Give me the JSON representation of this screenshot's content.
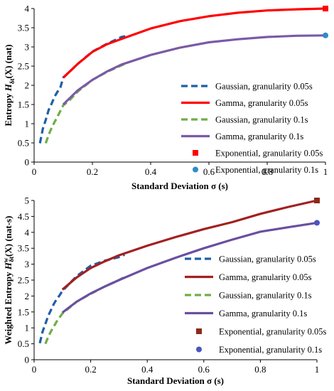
{
  "chart_data": [
    {
      "type": "line",
      "xlabel": "Standard Deviation σ  (s)",
      "ylabel": "Entropy H_δt(X) (nat)",
      "ylabel_parts": {
        "pre": "Entropy ",
        "H": "H",
        "sub": "δt",
        "post": "(X) (nat)"
      },
      "xlim": [
        0,
        1
      ],
      "ylim": [
        0,
        4
      ],
      "xticks": [
        0,
        0.2,
        0.4,
        0.6,
        0.8,
        1
      ],
      "xtick_labels": [
        "0",
        "0.2",
        "0.4",
        "0.6",
        "0.8",
        "1"
      ],
      "yticks": [
        0,
        0.5,
        1,
        1.5,
        2,
        2.5,
        3,
        3.5,
        4
      ],
      "ytick_labels": [
        "0",
        "0.5",
        "1",
        "1.5",
        "2",
        "2.5",
        "3",
        "3.5",
        "4"
      ],
      "grid": false,
      "legend_position": "right",
      "series": [
        {
          "name": "Gaussian, granularity 0.05s",
          "style": "dashed",
          "color": "#1f5fa8",
          "x": [
            0.02,
            0.03,
            0.04,
            0.05,
            0.06,
            0.07,
            0.08,
            0.09,
            0.1,
            0.12,
            0.15,
            0.2,
            0.25,
            0.3,
            0.32
          ],
          "y": [
            0.49,
            0.87,
            1.1,
            1.36,
            1.52,
            1.7,
            1.83,
            1.94,
            2.2,
            2.34,
            2.56,
            2.88,
            3.08,
            3.26,
            3.29
          ]
        },
        {
          "name": "Gamma, granularity 0.05s",
          "style": "solid",
          "color": "#ff0000",
          "x": [
            0.1,
            0.15,
            0.2,
            0.25,
            0.3,
            0.4,
            0.5,
            0.6,
            0.7,
            0.8,
            0.9,
            1
          ],
          "y": [
            2.2,
            2.56,
            2.87,
            3.07,
            3.21,
            3.48,
            3.67,
            3.8,
            3.89,
            3.95,
            3.98,
            4.0
          ]
        },
        {
          "name": "Gaussian, granularity 0.1s",
          "style": "dashed",
          "color": "#70ad47",
          "x": [
            0.04,
            0.05,
            0.06,
            0.07,
            0.08,
            0.1,
            0.12,
            0.15,
            0.2,
            0.25,
            0.3,
            0.32
          ],
          "y": [
            0.49,
            0.71,
            0.89,
            1.04,
            1.18,
            1.48,
            1.6,
            1.84,
            2.14,
            2.35,
            2.52,
            2.58
          ]
        },
        {
          "name": "Gamma, granularity 0.1s",
          "style": "solid",
          "color": "#7a5aa6",
          "x": [
            0.1,
            0.15,
            0.2,
            0.25,
            0.3,
            0.4,
            0.5,
            0.6,
            0.7,
            0.8,
            0.9,
            1
          ],
          "y": [
            1.5,
            1.87,
            2.14,
            2.36,
            2.54,
            2.79,
            2.98,
            3.12,
            3.2,
            3.26,
            3.29,
            3.3
          ]
        },
        {
          "name": "Exponential, granularity 0.05s",
          "style": "square",
          "color": "#ff0000",
          "x": [
            1
          ],
          "y": [
            4.0
          ]
        },
        {
          "name": "Exponential, granularity 0.1s",
          "style": "circle",
          "color": "#2e8bc9",
          "x": [
            1
          ],
          "y": [
            3.3
          ]
        }
      ]
    },
    {
      "type": "line",
      "xlabel": "Standard Deviation σ  (s)",
      "ylabel": "Weighted Entropy H^w_δt(X) (nat-s)",
      "ylabel_parts": {
        "pre": "Weighted Entropy ",
        "H": "H",
        "sup": "w",
        "sub": "δt",
        "post": "(X) (nat-s)"
      },
      "xlim": [
        0,
        1
      ],
      "ylim": [
        0,
        5
      ],
      "xticks": [
        0,
        0.2,
        0.4,
        0.6,
        0.8,
        1
      ],
      "xtick_labels": [
        "0",
        "0.2",
        "0.4",
        "0.6",
        "0.8",
        "1"
      ],
      "yticks": [
        0,
        0.5,
        1,
        1.5,
        2,
        2.5,
        3,
        3.5,
        4,
        4.5,
        5
      ],
      "ytick_labels": [
        "0",
        "0.5",
        "1",
        "1.5",
        "2",
        "2.5",
        "3",
        "3.5",
        "4",
        "4.5",
        "5"
      ],
      "grid": false,
      "legend_position": "right",
      "series": [
        {
          "name": "Gaussian, granularity 0.05s",
          "style": "dashed",
          "color": "#1f5fa8",
          "x": [
            0.02,
            0.03,
            0.04,
            0.05,
            0.06,
            0.07,
            0.08,
            0.09,
            0.1,
            0.15,
            0.2,
            0.25,
            0.3,
            0.32
          ],
          "y": [
            0.52,
            0.88,
            1.13,
            1.38,
            1.57,
            1.76,
            1.9,
            2.02,
            2.16,
            2.62,
            2.95,
            3.11,
            3.22,
            3.3
          ]
        },
        {
          "name": "Gamma, granularity 0.05s",
          "style": "solid",
          "color": "#a32020",
          "x": [
            0.1,
            0.15,
            0.2,
            0.25,
            0.3,
            0.4,
            0.5,
            0.6,
            0.7,
            0.8,
            0.9,
            1
          ],
          "y": [
            2.2,
            2.58,
            2.88,
            3.09,
            3.28,
            3.58,
            3.85,
            4.1,
            4.32,
            4.58,
            4.8,
            5.0
          ]
        },
        {
          "name": "Gaussian, granularity 0.1s",
          "style": "dashed",
          "color": "#70ad47",
          "x": [
            0.04,
            0.05,
            0.06,
            0.07,
            0.08,
            0.1,
            0.15,
            0.2,
            0.25,
            0.3,
            0.32
          ],
          "y": [
            0.5,
            0.72,
            0.9,
            1.05,
            1.2,
            1.45,
            1.82,
            2.07,
            2.3,
            2.5,
            2.6
          ]
        },
        {
          "name": "Gamma, granularity 0.1s",
          "style": "solid",
          "color": "#6a4fa0",
          "x": [
            0.1,
            0.15,
            0.2,
            0.25,
            0.3,
            0.4,
            0.5,
            0.6,
            0.7,
            0.8,
            0.9,
            1
          ],
          "y": [
            1.48,
            1.82,
            2.08,
            2.3,
            2.5,
            2.88,
            3.2,
            3.5,
            3.77,
            4.02,
            4.16,
            4.3
          ]
        },
        {
          "name": "Exponential, granularity 0.05s",
          "style": "square",
          "color": "#8b2a1a",
          "x": [
            1
          ],
          "y": [
            5.0
          ]
        },
        {
          "name": "Exponential, granularity 0.1s",
          "style": "circle",
          "color": "#4a55c0",
          "x": [
            1
          ],
          "y": [
            4.3
          ]
        }
      ]
    }
  ]
}
